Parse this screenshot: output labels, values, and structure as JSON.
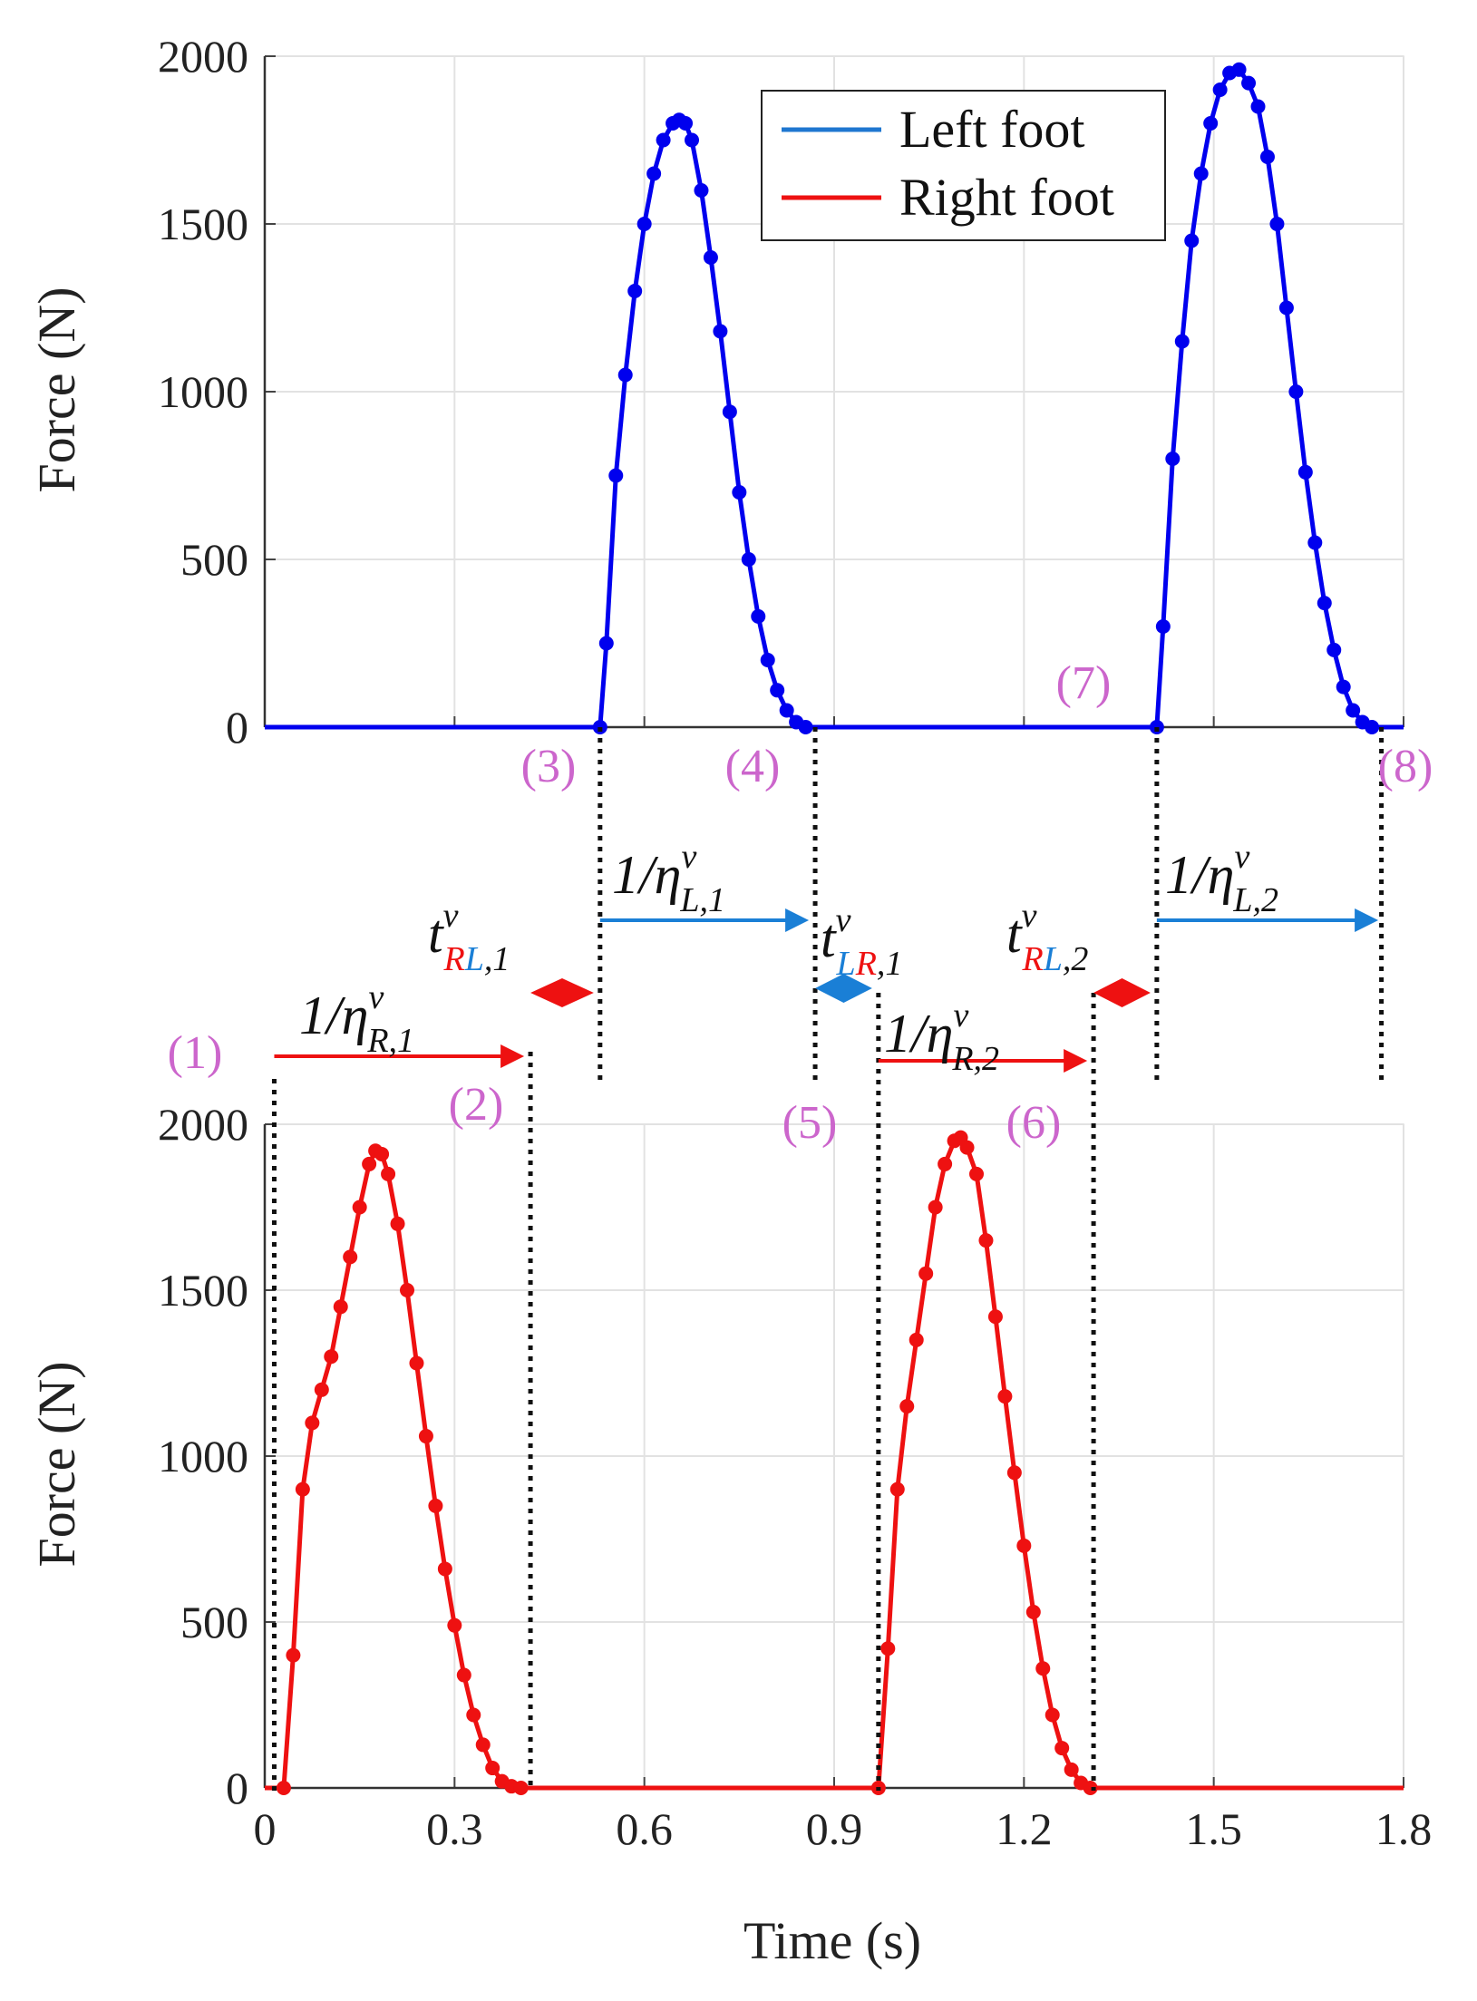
{
  "chart_data": [
    {
      "type": "line",
      "name": "top-panel",
      "ylabel": "Force (N)",
      "ylim": [
        0,
        2000
      ],
      "xlim": [
        0,
        1.8
      ],
      "yticks": [
        0,
        500,
        1000,
        1500,
        2000
      ],
      "grid": true,
      "legend": {
        "position": "top-right",
        "entries": [
          {
            "label": "Left foot",
            "color": "#1f77d0"
          },
          {
            "label": "Right foot",
            "color": "#ee1111"
          }
        ]
      },
      "series": [
        {
          "name": "Left foot",
          "color": "#0000ee",
          "x": [
            0,
            0.53,
            0.54,
            0.555,
            0.57,
            0.585,
            0.6,
            0.615,
            0.63,
            0.645,
            0.655,
            0.665,
            0.675,
            0.69,
            0.705,
            0.72,
            0.735,
            0.75,
            0.765,
            0.78,
            0.795,
            0.81,
            0.825,
            0.84,
            0.855,
            0.87,
            0.87,
            1.41,
            1.42,
            1.435,
            1.45,
            1.465,
            1.48,
            1.495,
            1.51,
            1.525,
            1.54,
            1.555,
            1.57,
            1.585,
            1.6,
            1.615,
            1.63,
            1.645,
            1.66,
            1.675,
            1.69,
            1.705,
            1.72,
            1.735,
            1.75,
            1.765,
            1.8
          ],
          "y": [
            0,
            0,
            250,
            750,
            1050,
            1300,
            1500,
            1650,
            1750,
            1800,
            1810,
            1800,
            1750,
            1600,
            1400,
            1180,
            940,
            700,
            500,
            330,
            200,
            110,
            50,
            15,
            0,
            0,
            0,
            0,
            300,
            800,
            1150,
            1450,
            1650,
            1800,
            1900,
            1950,
            1960,
            1920,
            1850,
            1700,
            1500,
            1250,
            1000,
            760,
            550,
            370,
            230,
            120,
            50,
            15,
            0,
            0,
            0
          ]
        }
      ]
    },
    {
      "type": "line",
      "name": "bottom-panel",
      "ylabel": "Force (N)",
      "xlabel": "Time (s)",
      "ylim": [
        0,
        2000
      ],
      "xlim": [
        0,
        1.8
      ],
      "xticks": [
        "0",
        "0.3",
        "0.6",
        "0.9",
        "1.2",
        "1.5",
        "1.8"
      ],
      "yticks": [
        0,
        500,
        1000,
        1500,
        2000
      ],
      "grid": true,
      "series": [
        {
          "name": "Right foot",
          "color": "#ee1111",
          "x": [
            0,
            0.03,
            0.045,
            0.06,
            0.075,
            0.09,
            0.105,
            0.12,
            0.135,
            0.15,
            0.165,
            0.175,
            0.185,
            0.195,
            0.21,
            0.225,
            0.24,
            0.255,
            0.27,
            0.285,
            0.3,
            0.315,
            0.33,
            0.345,
            0.36,
            0.375,
            0.39,
            0.405,
            0.42,
            0.97,
            0.985,
            1.0,
            1.015,
            1.03,
            1.045,
            1.06,
            1.075,
            1.09,
            1.1,
            1.11,
            1.125,
            1.14,
            1.155,
            1.17,
            1.185,
            1.2,
            1.215,
            1.23,
            1.245,
            1.26,
            1.275,
            1.29,
            1.305,
            1.31,
            1.8
          ],
          "y": [
            0,
            0,
            400,
            900,
            1100,
            1200,
            1300,
            1450,
            1600,
            1750,
            1880,
            1920,
            1910,
            1850,
            1700,
            1500,
            1280,
            1060,
            850,
            660,
            490,
            340,
            220,
            130,
            60,
            20,
            5,
            0,
            0,
            0,
            420,
            900,
            1150,
            1350,
            1550,
            1750,
            1880,
            1950,
            1960,
            1930,
            1850,
            1650,
            1420,
            1180,
            950,
            730,
            530,
            360,
            220,
            120,
            55,
            15,
            0,
            0,
            0
          ]
        }
      ]
    }
  ],
  "annotations": {
    "markers": [
      "(1)",
      "(2)",
      "(3)",
      "(4)",
      "(5)",
      "(6)",
      "(7)",
      "(8)"
    ],
    "marker_color": "#cc66cc",
    "intervals": [
      {
        "main": "1/η",
        "sup": "v",
        "sub": "R,1"
      },
      {
        "main": "1/η",
        "sup": "v",
        "sub": "L,1"
      },
      {
        "main": "1/η",
        "sup": "v",
        "sub": "R,2"
      },
      {
        "main": "1/η",
        "sup": "v",
        "sub": "L,2"
      }
    ],
    "lags": [
      {
        "main": "t",
        "sup": "v",
        "sub1": "R",
        "sub2": "L",
        "sub3": ",1"
      },
      {
        "main": "t",
        "sup": "v",
        "sub1": "L",
        "sub2": "R",
        "sub3": ",1"
      },
      {
        "main": "t",
        "sup": "v",
        "sub1": "R",
        "sub2": "L",
        "sub3": ",2"
      }
    ],
    "colors": {
      "left": "#1a7fd6",
      "right": "#ee1111",
      "lag_blue": "#1a7fd6",
      "lag_red": "#ee1111"
    }
  }
}
